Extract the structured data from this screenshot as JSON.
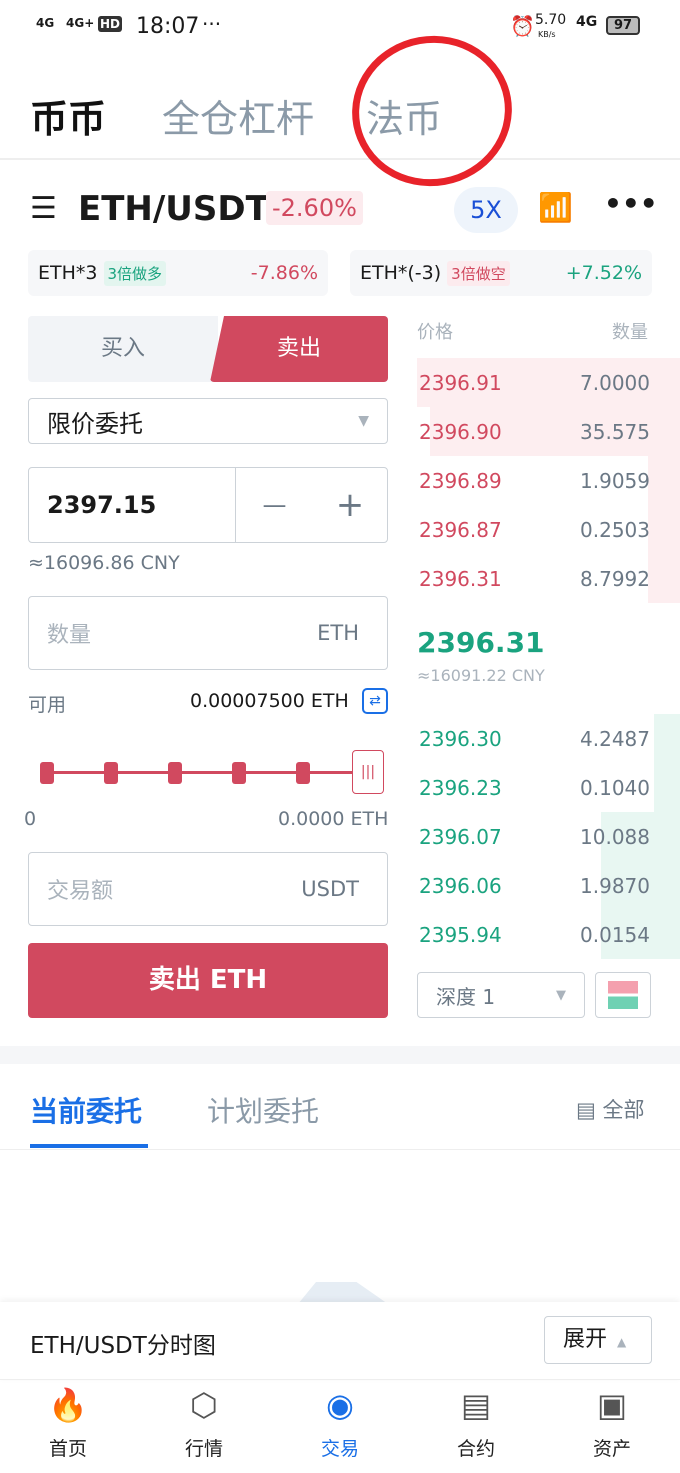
{
  "status": {
    "signal1": "4G",
    "signal2": "4G+",
    "hd": "HD",
    "time": "18:07",
    "dots": "···",
    "speed": "5.70",
    "speed_unit": "KB/s",
    "net": "4G",
    "battery": "97"
  },
  "tabs": [
    {
      "label": "币币",
      "active": true
    },
    {
      "label": "全仓杠杆"
    },
    {
      "label": "法币"
    }
  ],
  "pair": {
    "name": "ETH/USDT",
    "change": "-2.60%",
    "leverage": "5X"
  },
  "leveraged": [
    {
      "name": "ETH*3",
      "badge": "3倍做多",
      "change": "-7.86%"
    },
    {
      "name": "ETH*(-3)",
      "badge": "3倍做空",
      "change": "+7.52%"
    }
  ],
  "form": {
    "buy": "买入",
    "sell": "卖出",
    "order_type": "限价委托",
    "price": "2397.15",
    "minus": "—",
    "plus": "+",
    "cny": "≈16096.86 CNY",
    "amount_placeholder": "数量",
    "amount_unit": "ETH",
    "available_label": "可用",
    "available": "0.00007500 ETH",
    "slider_min": "0",
    "slider_max": "0.0000 ETH",
    "slider_value": 100,
    "total_placeholder": "交易额",
    "total_unit": "USDT",
    "submit": "卖出 ETH"
  },
  "orderbook": {
    "price_header": "价格",
    "qty_header": "数量",
    "asks": [
      {
        "price": "2396.91",
        "qty": "7.0000",
        "depth": 1.0
      },
      {
        "price": "2396.90",
        "qty": "35.575",
        "depth": 0.95
      },
      {
        "price": "2396.89",
        "qty": "1.9059",
        "depth": 0.12
      },
      {
        "price": "2396.87",
        "qty": "0.2503",
        "depth": 0.12
      },
      {
        "price": "2396.31",
        "qty": "8.7992",
        "depth": 0.12
      }
    ],
    "last": "2396.31",
    "last_cny": "≈16091.22 CNY",
    "bids": [
      {
        "price": "2396.30",
        "qty": "4.2487",
        "depth": 0.1
      },
      {
        "price": "2396.23",
        "qty": "0.1040",
        "depth": 0.1
      },
      {
        "price": "2396.07",
        "qty": "10.088",
        "depth": 0.3
      },
      {
        "price": "2396.06",
        "qty": "1.9870",
        "depth": 0.3
      },
      {
        "price": "2395.94",
        "qty": "0.0154",
        "depth": 0.3
      }
    ],
    "depth_label": "深度 1"
  },
  "orders": {
    "tabs": [
      "当前委托",
      "计划委托"
    ],
    "all": "全部"
  },
  "chart_bar": {
    "title": "ETH/USDT分时图",
    "expand": "展开"
  },
  "nav": [
    {
      "label": "首页",
      "icon": "flame-icon"
    },
    {
      "label": "行情",
      "icon": "market-icon"
    },
    {
      "label": "交易",
      "icon": "trade-icon",
      "active": true
    },
    {
      "label": "合约",
      "icon": "contract-icon"
    },
    {
      "label": "资产",
      "icon": "wallet-icon"
    }
  ],
  "colors": {
    "red": "#d1495f",
    "green": "#1aa37f",
    "blue": "#1a6fe6"
  }
}
